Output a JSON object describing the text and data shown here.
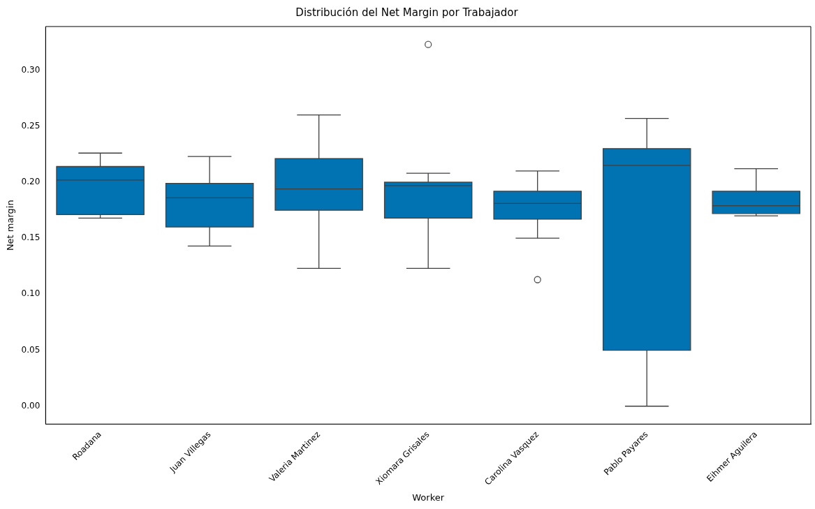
{
  "chart_data": {
    "type": "box",
    "title": "Distribución del Net Margin por Trabajador",
    "xlabel": "Worker",
    "ylabel": "Net margin",
    "categories": [
      "Roadana",
      "Juan Villegas",
      "Valeria Martinez",
      "Xiomara Grisales",
      "Carolina Vasquez",
      "Pablo Payares",
      "Eihmer Aguilera"
    ],
    "color": "#0173b2",
    "boxes": [
      {
        "low": 0.168,
        "q1": 0.171,
        "median": 0.202,
        "q3": 0.214,
        "high": 0.226
      },
      {
        "low": 0.143,
        "q1": 0.16,
        "median": 0.186,
        "q3": 0.199,
        "high": 0.223
      },
      {
        "low": 0.123,
        "q1": 0.175,
        "median": 0.194,
        "q3": 0.221,
        "high": 0.26
      },
      {
        "low": 0.123,
        "q1": 0.168,
        "median": 0.197,
        "q3": 0.2,
        "high": 0.208,
        "outliers": [
          0.323
        ]
      },
      {
        "low": 0.15,
        "q1": 0.167,
        "median": 0.181,
        "q3": 0.192,
        "high": 0.21,
        "outliers": [
          0.113
        ]
      },
      {
        "low": 0.0,
        "q1": 0.05,
        "median": 0.215,
        "q3": 0.23,
        "high": 0.257
      },
      {
        "low": 0.17,
        "q1": 0.172,
        "median": 0.179,
        "q3": 0.192,
        "high": 0.212
      }
    ],
    "ylim": [
      -0.016,
      0.339
    ],
    "yticks": [
      {
        "value": 0,
        "label": "0.00"
      },
      {
        "value": 0.05,
        "label": "0.05"
      },
      {
        "value": 0.1,
        "label": "0.10"
      },
      {
        "value": 0.15,
        "label": "0.15"
      },
      {
        "value": 0.2,
        "label": "0.20"
      },
      {
        "value": 0.25,
        "label": "0.25"
      },
      {
        "value": 0.3,
        "label": "0.30"
      }
    ],
    "grid": false,
    "legend": false
  }
}
